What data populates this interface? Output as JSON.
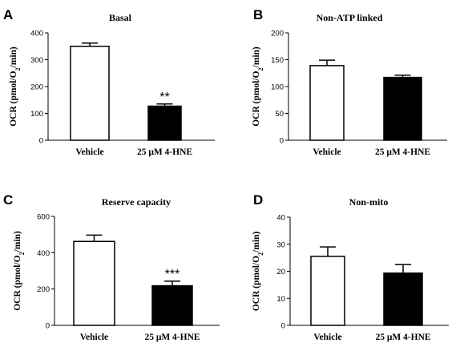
{
  "chart_data": [
    {
      "panel": "A",
      "type": "bar",
      "title": "Basal",
      "ylabel_parts": [
        "OCR (pmol/O",
        "2",
        "/min)"
      ],
      "categories": [
        "Vehicle",
        "25 μM 4-HNE"
      ],
      "values": [
        350,
        127
      ],
      "errors": [
        12,
        8
      ],
      "fills": [
        "#ffffff",
        "#000000"
      ],
      "ylim": [
        0,
        400
      ],
      "yticks": [
        0,
        100,
        200,
        300,
        400
      ],
      "significance": [
        "",
        "**"
      ]
    },
    {
      "panel": "B",
      "type": "bar",
      "title": "Non-ATP linked",
      "ylabel_parts": [
        "OCR (pmol/O",
        "2",
        "/min)"
      ],
      "categories": [
        "Vehicle",
        "25 μM 4-HNE"
      ],
      "values": [
        139,
        117
      ],
      "errors": [
        10,
        4
      ],
      "fills": [
        "#ffffff",
        "#000000"
      ],
      "ylim": [
        0,
        200
      ],
      "yticks": [
        0,
        50,
        100,
        150,
        200
      ],
      "significance": [
        "",
        ""
      ]
    },
    {
      "panel": "C",
      "type": "bar",
      "title": "Reserve capacity",
      "ylabel_parts": [
        "OCR (pmol/O",
        "2",
        "/min)"
      ],
      "categories": [
        "Vehicle",
        "25 μM 4-HNE"
      ],
      "values": [
        462,
        218
      ],
      "errors": [
        35,
        25
      ],
      "fills": [
        "#ffffff",
        "#000000"
      ],
      "ylim": [
        0,
        600
      ],
      "yticks": [
        0,
        200,
        400,
        600
      ],
      "significance": [
        "",
        "***"
      ]
    },
    {
      "panel": "D",
      "type": "bar",
      "title": "Non-mito",
      "ylabel_parts": [
        "OCR (pmol/O",
        "2",
        "/min)"
      ],
      "categories": [
        "Vehicle",
        "25 μM 4-HNE"
      ],
      "values": [
        25.5,
        19.3
      ],
      "errors": [
        3.5,
        3.2
      ],
      "fills": [
        "#ffffff",
        "#000000"
      ],
      "ylim": [
        0,
        40
      ],
      "yticks": [
        0,
        10,
        20,
        30,
        40
      ],
      "significance": [
        "",
        ""
      ]
    }
  ]
}
